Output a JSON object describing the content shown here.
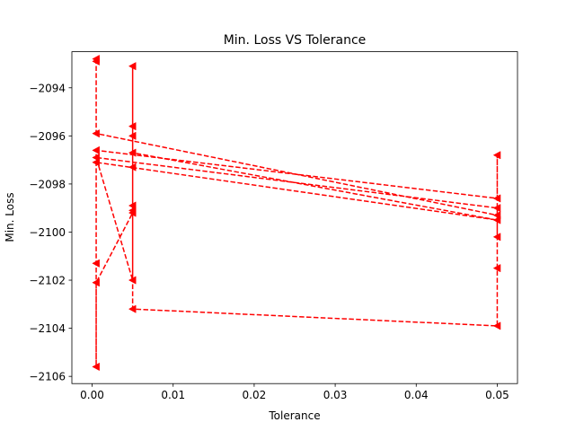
{
  "chart_data": {
    "type": "line",
    "title": "Min. Loss VS Tolerance",
    "xlabel": "Tolerance",
    "ylabel": "Min. Loss",
    "xlim": [
      -0.0025,
      0.0525
    ],
    "ylim": [
      -2106.3,
      -2092.5
    ],
    "xticks": [
      0.0,
      0.01,
      0.02,
      0.03,
      0.04,
      0.05
    ],
    "xtick_labels": [
      "0.00",
      "0.01",
      "0.02",
      "0.03",
      "0.04",
      "0.05"
    ],
    "yticks": [
      -2106,
      -2104,
      -2102,
      -2100,
      -2098,
      -2096,
      -2094
    ],
    "ytick_labels": [
      "−2106",
      "−2104",
      "−2102",
      "−2100",
      "−2098",
      "−2096",
      "−2094"
    ],
    "grid": false,
    "legend": "none",
    "series": [
      {
        "color": "#ff0000",
        "line_style": "dashed",
        "marker": "triangle-left",
        "points": [
          [
            0.0005,
            -2092.8
          ],
          [
            0.0005,
            -2092.9
          ],
          [
            0.0005,
            -2095.9
          ],
          [
            0.05,
            -2099.3
          ],
          [
            0.05,
            -2101.5
          ],
          [
            0.05,
            -2103.9
          ],
          [
            0.005,
            -2103.2
          ],
          [
            0.005,
            -2099.2
          ],
          [
            0.0005,
            -2102.1
          ],
          [
            0.0005,
            -2105.6
          ],
          [
            0.0005,
            -2101.3
          ],
          [
            0.0005,
            -2096.6
          ],
          [
            0.05,
            -2098.6
          ],
          [
            0.05,
            -2096.8
          ],
          [
            0.05,
            -2100.2
          ],
          [
            0.05,
            -2099.0
          ],
          [
            0.0005,
            -2096.9
          ],
          [
            0.005,
            -2102.0
          ],
          [
            0.005,
            -2098.9
          ],
          [
            0.005,
            -2095.6
          ],
          [
            0.005,
            -2093.1
          ],
          [
            0.005,
            -2096.0
          ],
          [
            0.005,
            -2097.3
          ],
          [
            0.005,
            -2099.1
          ],
          [
            0.005,
            -2096.7
          ],
          [
            0.05,
            -2099.5
          ],
          [
            0.0005,
            -2097.1
          ]
        ]
      }
    ]
  }
}
